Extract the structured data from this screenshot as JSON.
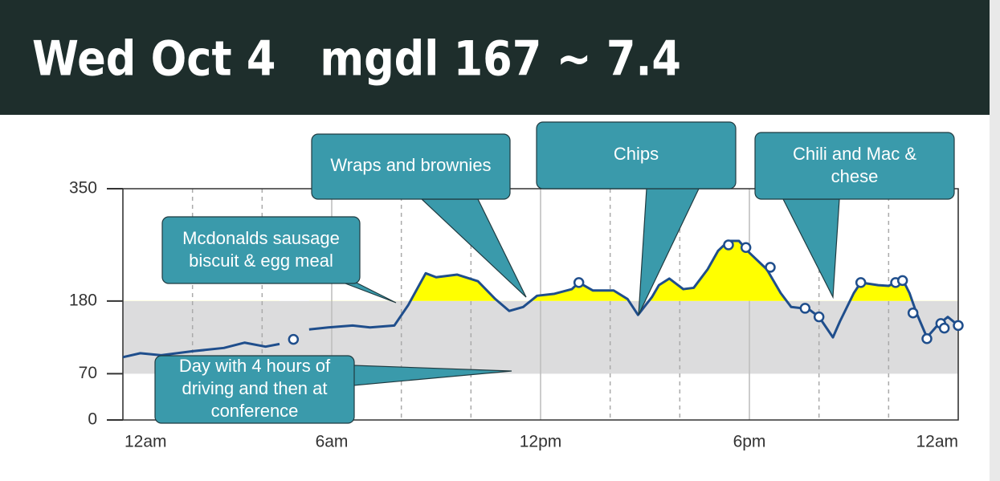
{
  "header": {
    "title": "Wed Oct 4   mgdl 167 ~ 7.4"
  },
  "chart_data": {
    "type": "line",
    "xlim": [
      0,
      24
    ],
    "xticks": [
      {
        "value": 0,
        "label": "12am"
      },
      {
        "value": 6,
        "label": "6am"
      },
      {
        "value": 12,
        "label": "12pm"
      },
      {
        "value": 18,
        "label": "6pm"
      },
      {
        "value": 24,
        "label": "12am"
      }
    ],
    "minor_xticks": [
      2,
      4,
      8,
      10,
      14,
      16,
      20,
      22
    ],
    "ylim": [
      0,
      350
    ],
    "yticks": [
      0,
      70,
      180,
      350
    ],
    "target_range": [
      70,
      180
    ],
    "range_color": "#dcdcdd",
    "high_color": "#ffff00",
    "line": {
      "color": "#1f4e8c",
      "x": [
        0,
        0.5,
        1.1,
        2.0,
        2.9,
        3.5,
        4.1,
        4.5,
        4.9,
        5.35,
        5.9,
        6.6,
        7.1,
        7.8,
        8.2,
        8.7,
        9.0,
        9.6,
        10.2,
        10.7,
        11.1,
        11.5,
        11.9,
        12.4,
        12.9,
        13.1,
        13.5,
        14.1,
        14.5,
        14.8,
        15.2,
        15.4,
        15.7,
        16.1,
        16.4,
        16.8,
        17.1,
        17.4,
        17.7,
        18.0,
        18.5,
        18.9,
        19.2,
        19.7,
        20.0,
        20.4,
        20.6,
        21.0,
        21.2,
        21.7,
        22.0,
        22.4,
        22.6,
        22.8,
        23.1,
        23.4,
        23.7,
        24.0
      ],
      "values": [
        95,
        101,
        98,
        104,
        109,
        117,
        111,
        115,
        null,
        137,
        140,
        143,
        140,
        143,
        174,
        222,
        216,
        220,
        210,
        183,
        165,
        171,
        188,
        191,
        198,
        208,
        196,
        196,
        183,
        159,
        186,
        204,
        214,
        198,
        200,
        228,
        256,
        271,
        271,
        253,
        228,
        192,
        171,
        168,
        156,
        125,
        149,
        192,
        208,
        204,
        203,
        213,
        192,
        162,
        125,
        143,
        156,
        143
      ]
    },
    "readings": {
      "color": "#1f4e8c",
      "x": [
        4.9,
        13.1,
        17.4,
        17.9,
        18.6,
        19.6,
        20.0,
        21.2,
        22.2,
        22.4,
        22.7,
        23.1,
        23.5,
        23.6,
        24.0
      ],
      "values": [
        122,
        208,
        265,
        261,
        231,
        169,
        156,
        208,
        208,
        211,
        162,
        123,
        146,
        139,
        143
      ]
    },
    "annotations": [
      {
        "lines": [
          "Wraps and brownies"
        ]
      },
      {
        "lines": [
          "Chips"
        ]
      },
      {
        "lines": [
          "Chili and Mac &",
          "chese"
        ]
      },
      {
        "lines": [
          "Mcdonalds sausage",
          "biscuit & egg meal"
        ]
      },
      {
        "lines": [
          "Day with 4 hours of",
          "driving and then at",
          "conference"
        ]
      }
    ]
  }
}
